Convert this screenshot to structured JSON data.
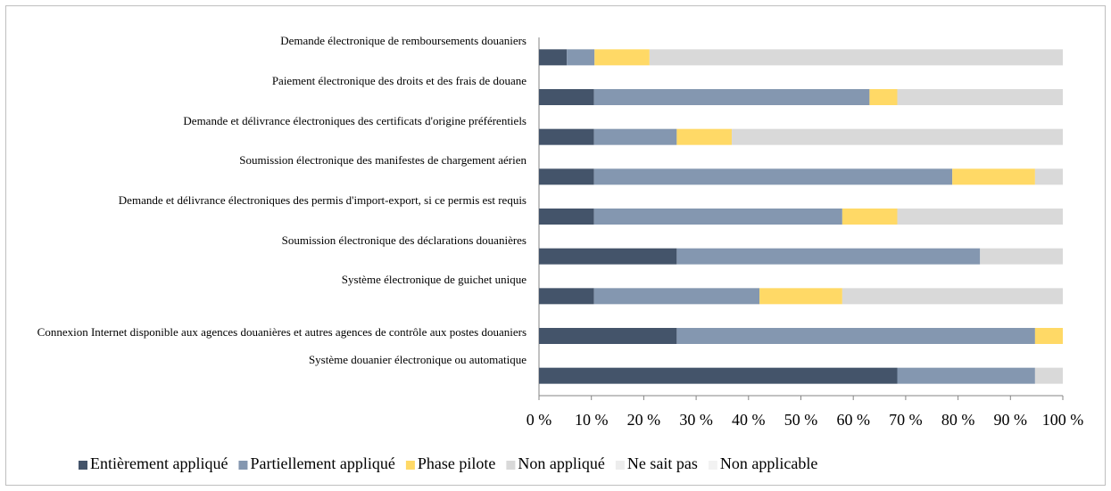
{
  "chart_data": {
    "type": "stacked-bar-horizontal",
    "categories": [
      "Demande électronique de remboursements douaniers",
      "Paiement électronique des droits et des frais de douane",
      "Demande et délivrance électroniques des certificats d'origine préférentiels",
      "Soumission électronique des manifestes de chargement aérien",
      "Demande et délivrance électroniques des permis d'import-export, si ce permis est requis",
      "Soumission électronique des déclarations douanières",
      "Système électronique de guichet unique",
      "Connexion Internet disponible aux agences douanières et autres agences de contrôle aux postes douaniers",
      "Système douanier électronique ou automatique"
    ],
    "series": [
      {
        "name": "Entièrement appliqué",
        "color": "#44546a",
        "values": [
          5.3,
          10.5,
          10.5,
          10.5,
          10.5,
          26.3,
          10.5,
          26.3,
          68.4
        ]
      },
      {
        "name": "Partiellement appliqué",
        "color": "#8497b0",
        "values": [
          5.3,
          52.6,
          15.8,
          68.4,
          47.4,
          57.9,
          31.6,
          68.4,
          26.3
        ]
      },
      {
        "name": "Phase pilote",
        "color": "#ffd966",
        "values": [
          10.5,
          5.3,
          10.5,
          15.8,
          10.5,
          0,
          15.8,
          5.3,
          0
        ]
      },
      {
        "name": "Non appliqué",
        "color": "#d9d9d9",
        "values": [
          78.9,
          31.6,
          63.2,
          5.3,
          31.6,
          15.8,
          42.1,
          0,
          5.3
        ]
      },
      {
        "name": "Ne sait pas",
        "color": "#ededed",
        "values": [
          0,
          0,
          0,
          0,
          0,
          0,
          0,
          0,
          0
        ]
      },
      {
        "name": "Non applicable",
        "color": "#f2f2f2",
        "values": [
          0,
          0,
          0,
          0,
          0,
          0,
          0,
          0,
          0
        ]
      }
    ],
    "xlim": [
      0,
      100
    ],
    "xticks": [
      {
        "value": 0,
        "label": "0 %"
      },
      {
        "value": 10,
        "label": "10 %"
      },
      {
        "value": 20,
        "label": "20 %"
      },
      {
        "value": 30,
        "label": "30 %"
      },
      {
        "value": 40,
        "label": "40 %"
      },
      {
        "value": 50,
        "label": "50 %"
      },
      {
        "value": 60,
        "label": "60 %"
      },
      {
        "value": 70,
        "label": "70 %"
      },
      {
        "value": 80,
        "label": "80 %"
      },
      {
        "value": 90,
        "label": "90 %"
      },
      {
        "value": 100,
        "label": "100 %"
      }
    ],
    "legend": "bottom"
  }
}
